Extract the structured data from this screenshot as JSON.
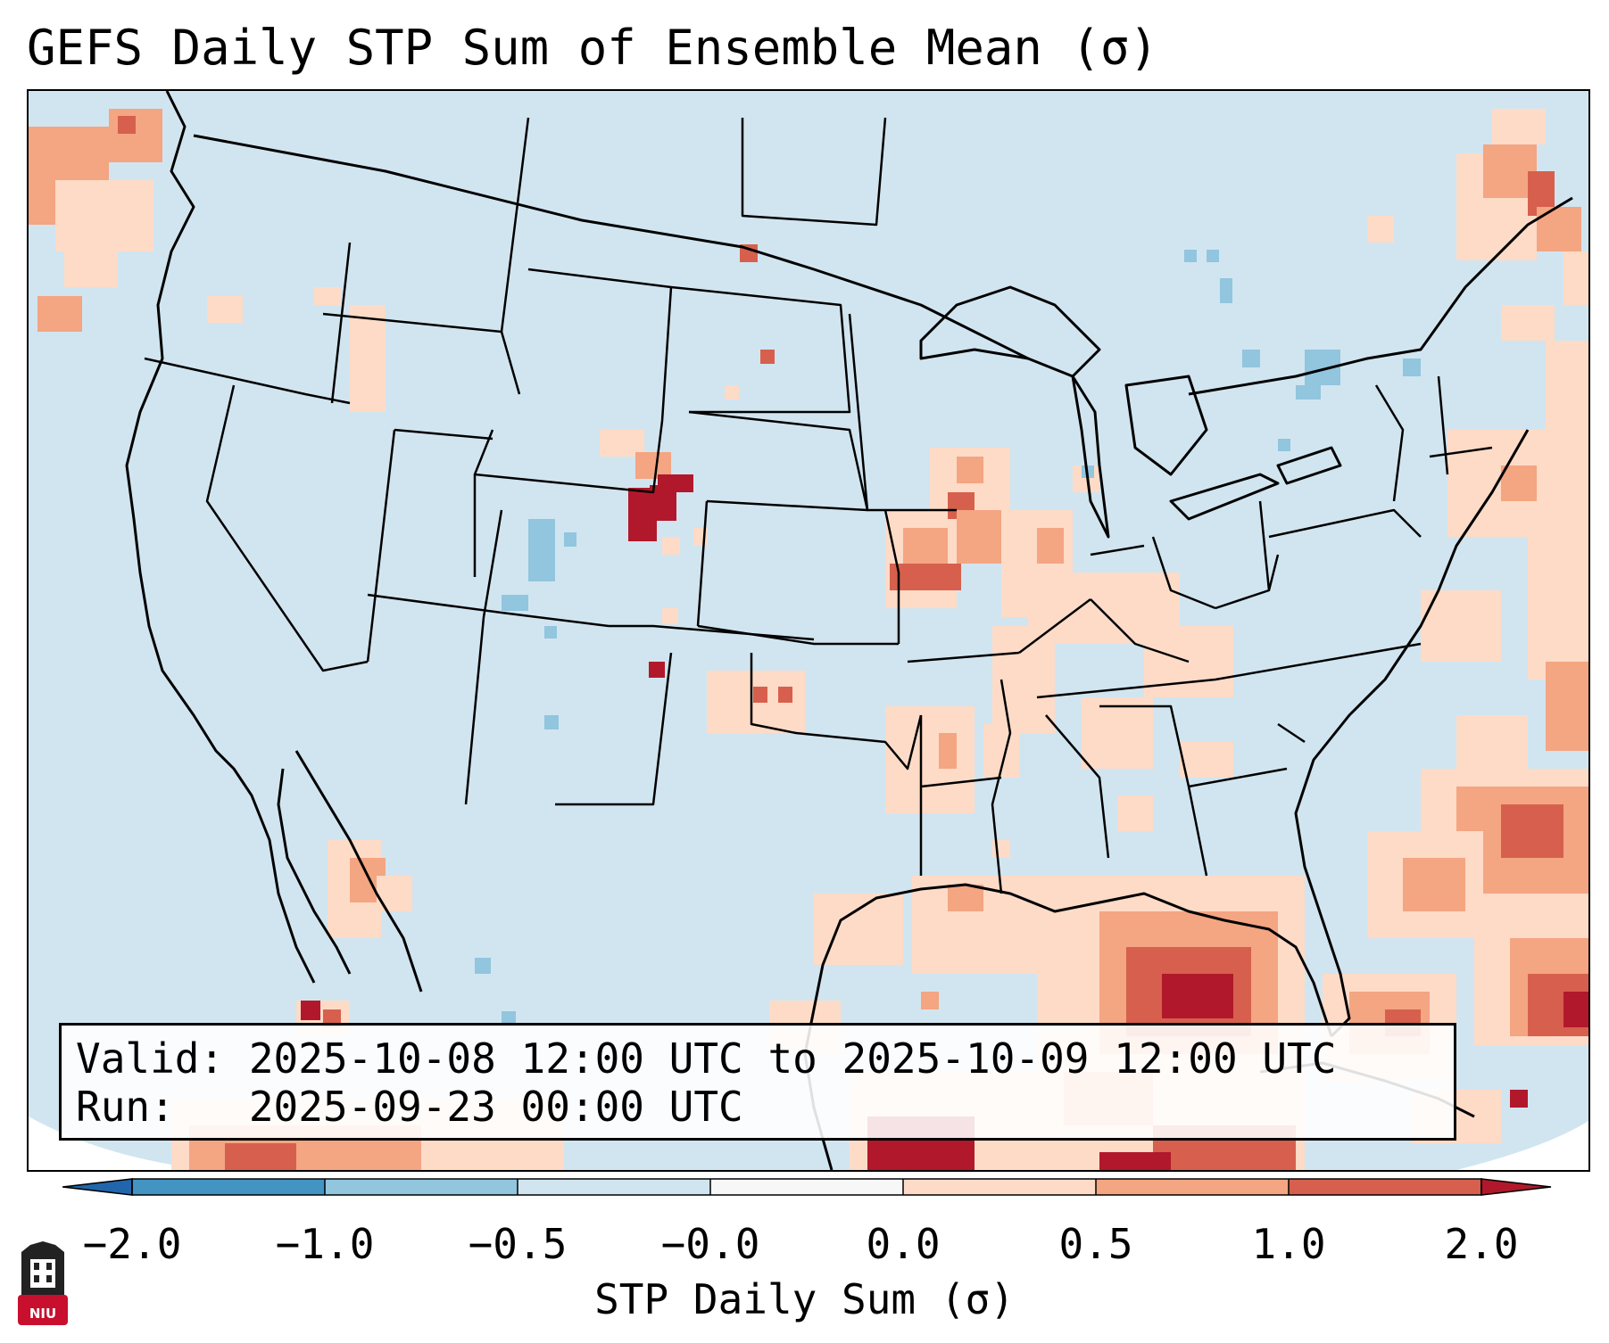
{
  "title": "GEFS Daily STP Sum of Ensemble Mean (σ)",
  "info": {
    "valid": "Valid: 2025-10-08 12:00 UTC to 2025-10-09 12:00 UTC",
    "run": "Run:   2025-09-23 00:00 UTC"
  },
  "colorbar": {
    "label": "STP Daily Sum (σ)",
    "ticks": [
      "−2.0",
      "−1.0",
      "−0.5",
      "−0.0",
      "0.0",
      "0.5",
      "1.0",
      "2.0"
    ],
    "bins": [
      {
        "range": "< -2.0",
        "color": "#2166ac"
      },
      {
        "range": "-2.0 to -1.0",
        "color": "#4393c3"
      },
      {
        "range": "-1.0 to -0.5",
        "color": "#92c5de"
      },
      {
        "range": "-0.5 to -0.0",
        "color": "#d1e5f0"
      },
      {
        "range": "-0.0 to 0.0",
        "color": "#f7f7f7"
      },
      {
        "range": "0.0 to 0.5",
        "color": "#fddbc7"
      },
      {
        "range": "0.5 to 1.0",
        "color": "#f4a582"
      },
      {
        "range": "1.0 to 2.0",
        "color": "#d6604d"
      },
      {
        "range": "> 2.0",
        "color": "#b2182b"
      }
    ]
  },
  "logo": {
    "text": "NIU",
    "icon": "niu-university-seal-icon",
    "color": "#c8102e"
  },
  "map": {
    "projection": "Lambert conformal (CONUS)",
    "background_value_color": "#d1e5f0",
    "highlights": [
      {
        "region": "Western Nebraska / SE Wyoming",
        "level": "> 2.0",
        "color": "#b2182b"
      },
      {
        "region": "Northern Illinois / Iowa",
        "level": "1.0 to 2.0",
        "color": "#d6604d"
      },
      {
        "region": "Gulf of Mexico",
        "level": "1.0 to 2.0",
        "color": "#d6604d"
      },
      {
        "region": "Western Atlantic",
        "level": "0.5 to 1.0",
        "color": "#f4a582"
      }
    ]
  }
}
